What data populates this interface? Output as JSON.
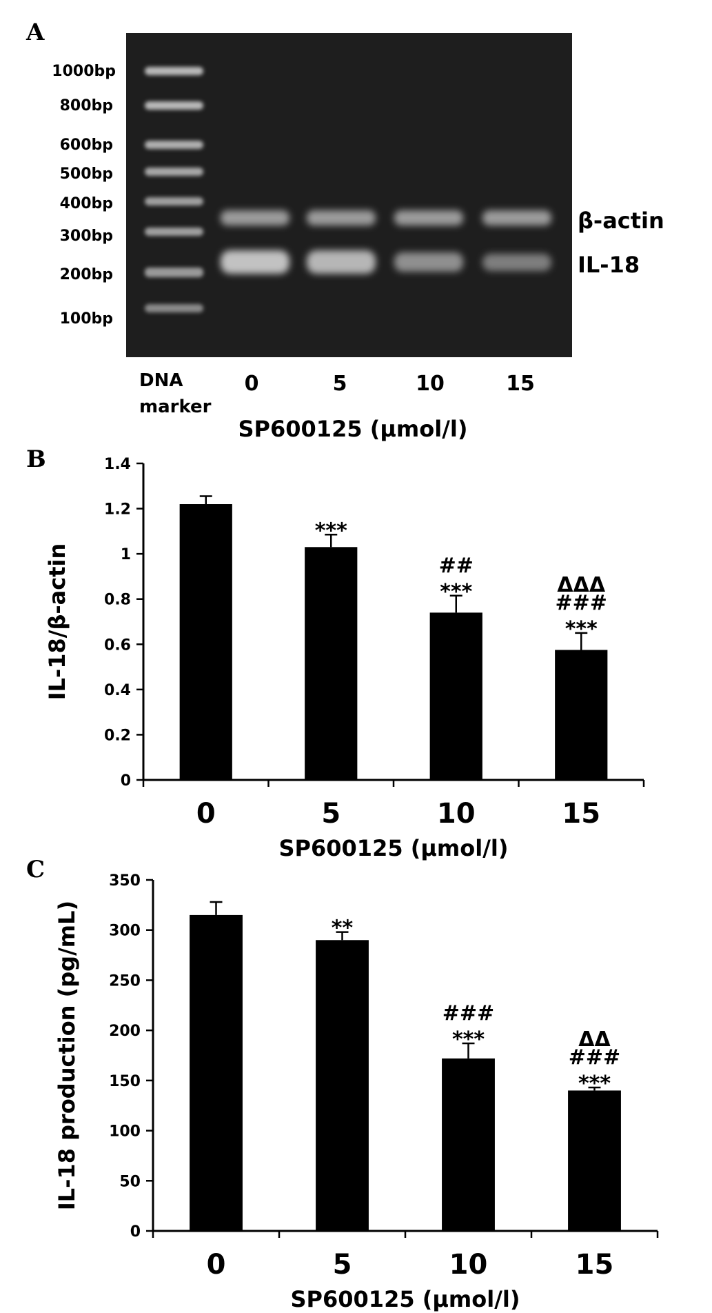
{
  "panel_a": {
    "letter": "A",
    "ladder_labels": [
      "1000bp",
      "800bp",
      "600bp",
      "500bp",
      "400bp",
      "300bp",
      "200bp",
      "100bp"
    ],
    "marker_label_line1": "DNA",
    "marker_label_line2": "marker",
    "lane_labels": [
      "0",
      "5",
      "10",
      "15"
    ],
    "band_labels": [
      "β-actin",
      "IL-18"
    ],
    "xlabel": "SP600125 (μmol/l)",
    "colors": {
      "gel_background": "#1e1e1e"
    }
  },
  "chart_data": [
    {
      "type": "bar",
      "panel": "B",
      "categories": [
        "0",
        "5",
        "10",
        "15"
      ],
      "values": [
        1.22,
        1.03,
        0.74,
        0.575
      ],
      "errors": [
        0.035,
        0.055,
        0.075,
        0.075
      ],
      "significance": [
        [],
        [
          "***"
        ],
        [
          "***",
          "##"
        ],
        [
          "***",
          "###",
          "ΔΔΔ"
        ]
      ],
      "xlabel": "SP600125 (μmol/l)",
      "ylabel": "IL-18/β-actin",
      "ylim": [
        0,
        1.4
      ],
      "yticks": [
        "0",
        "0.2",
        "0.4",
        "0.6",
        "0.8",
        "1",
        "1.2",
        "1.4"
      ],
      "bar_color": "#000000",
      "grid": false
    },
    {
      "type": "bar",
      "panel": "C",
      "categories": [
        "0",
        "5",
        "10",
        "15"
      ],
      "values": [
        315,
        290,
        172,
        140
      ],
      "errors": [
        13,
        8,
        15,
        3
      ],
      "significance": [
        [],
        [
          "**"
        ],
        [
          "***",
          "###"
        ],
        [
          "***",
          "###",
          "ΔΔ"
        ]
      ],
      "xlabel": "SP600125 (μmol/l)",
      "ylabel": "IL-18 production (pg/mL)",
      "ylim": [
        0,
        350
      ],
      "yticks": [
        "0",
        "50",
        "100",
        "150",
        "200",
        "250",
        "300",
        "350"
      ],
      "bar_color": "#000000",
      "grid": false
    }
  ]
}
